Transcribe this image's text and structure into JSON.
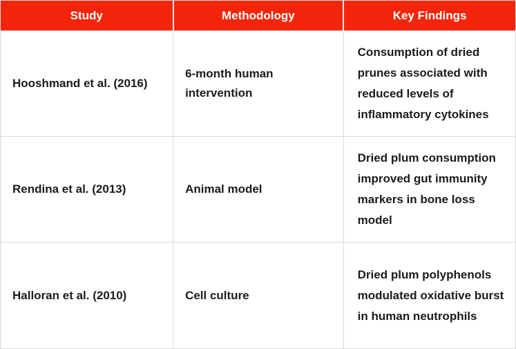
{
  "colors": {
    "accent": "#F5250C",
    "header_text": "#FFFFFF",
    "text": "#1B1B1D",
    "border": "#D4D8DB"
  },
  "chart_data": {
    "type": "table",
    "columns": [
      "Study",
      "Methodology",
      "Key Findings"
    ],
    "rows": [
      {
        "study": "Hooshmand et al. (2016)",
        "methodology": "6-month human intervention",
        "key_findings": "Consumption of dried prunes associated with reduced levels of inflammatory cytokines"
      },
      {
        "study": "Rendina et al. (2013)",
        "methodology": "Animal model",
        "key_findings": "Dried plum consumption improved gut immunity markers in bone loss model"
      },
      {
        "study": "Halloran et al. (2010)",
        "methodology": "Cell culture",
        "key_findings": "Dried plum polyphenols modulated oxidative burst in human neutrophils"
      }
    ]
  }
}
